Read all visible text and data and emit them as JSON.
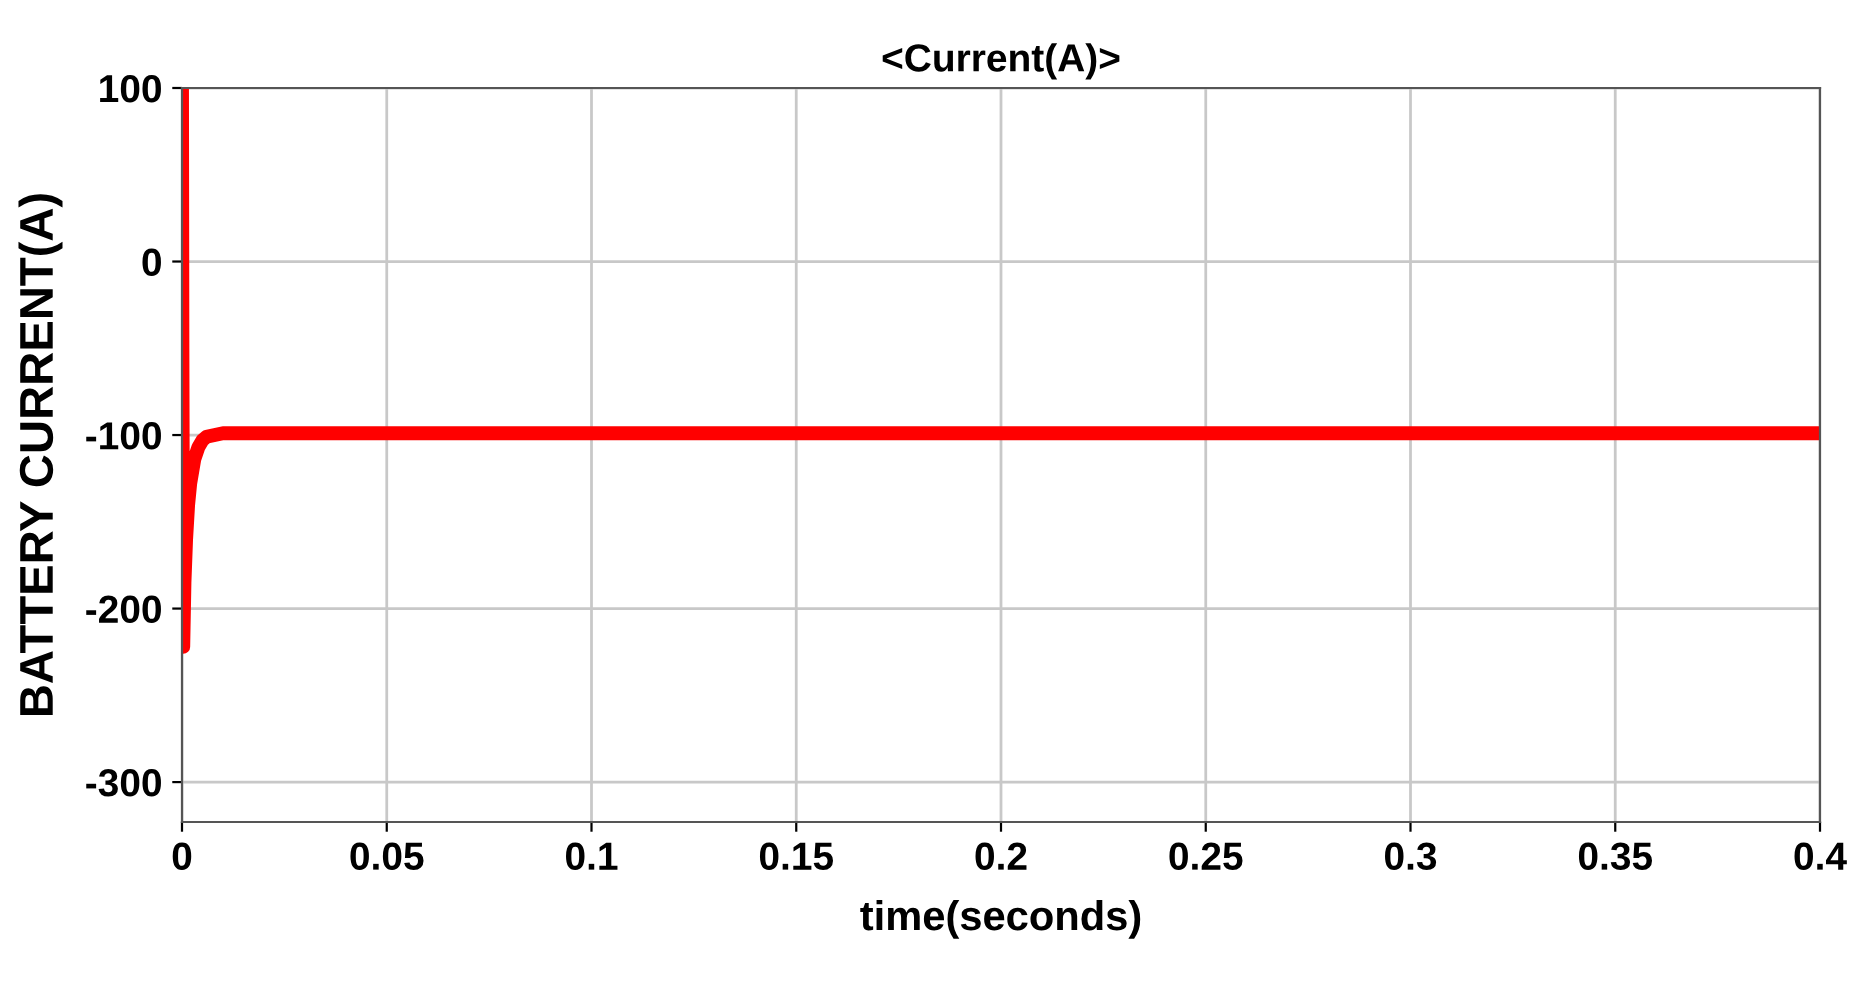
{
  "chart_data": {
    "type": "line",
    "title": "<Current(A)>",
    "xlabel": "time(seconds)",
    "ylabel": "BATTERY CURRENT(A)",
    "series": [
      {
        "color": "#ff0000",
        "x": [
          0,
          0.0001,
          0.0003,
          0.0006,
          0.001,
          0.0015,
          0.002,
          0.003,
          0.004,
          0.005,
          0.006,
          0.008,
          0.01,
          0.02,
          0.05,
          0.1,
          0.2,
          0.3,
          0.4
        ],
        "values": [
          100,
          -50,
          -222,
          -185,
          -160,
          -140,
          -128,
          -114,
          -107,
          -103,
          -101,
          -100,
          -99,
          -99,
          -99,
          -99,
          -99,
          -99,
          -99
        ]
      }
    ],
    "xlim": [
      0,
      0.4
    ],
    "ylim": [
      -323,
      100
    ],
    "xticks": [
      0,
      0.05,
      0.1,
      0.15,
      0.2,
      0.25,
      0.3,
      0.35,
      0.4
    ],
    "yticks": [
      -300,
      -200,
      -100,
      0,
      100
    ],
    "grid": true,
    "marker": "none",
    "line_style": "solid"
  }
}
